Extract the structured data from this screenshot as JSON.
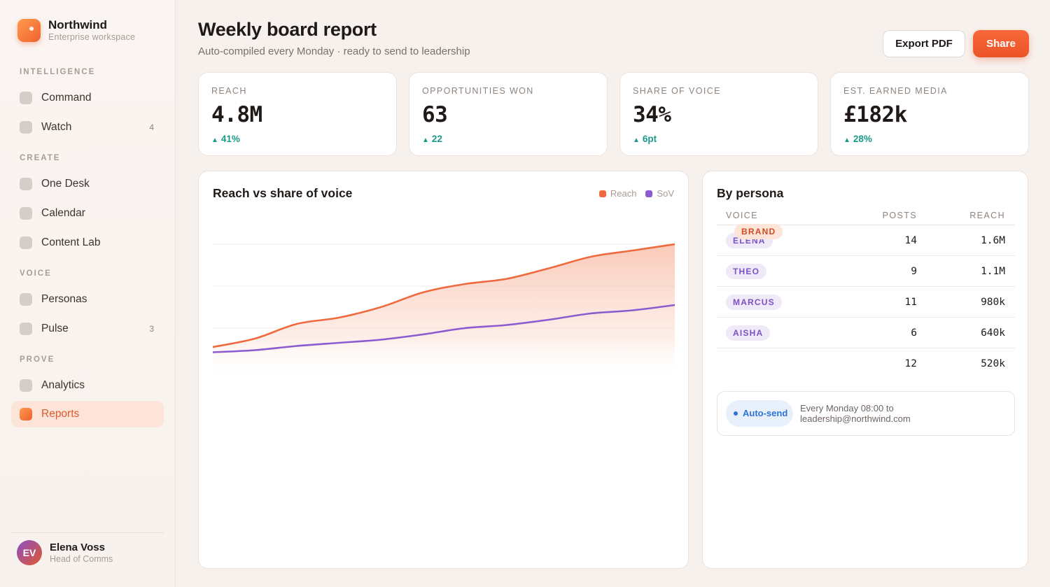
{
  "brand": {
    "name": "Northwind",
    "subtitle": "Enterprise workspace"
  },
  "nav": {
    "sections": [
      {
        "label": "INTELLIGENCE"
      },
      {
        "label": "CREATE"
      },
      {
        "label": "VOICE"
      },
      {
        "label": "PROVE"
      }
    ],
    "items": [
      {
        "label": "Command",
        "count": ""
      },
      {
        "label": "Watch",
        "count": "4"
      },
      {
        "label": "One Desk",
        "count": ""
      },
      {
        "label": "Calendar",
        "count": ""
      },
      {
        "label": "Content Lab",
        "count": ""
      },
      {
        "label": "Personas",
        "count": ""
      },
      {
        "label": "Pulse",
        "count": "3"
      },
      {
        "label": "Analytics",
        "count": ""
      },
      {
        "label": "Reports",
        "count": "",
        "active": true
      }
    ]
  },
  "user": {
    "initials": "EV",
    "name": "Elena Voss",
    "role": "Head of Comms"
  },
  "header": {
    "title": "Weekly board report",
    "subtitle": "Auto-compiled every Monday · ready to send to leadership",
    "export_label": "Export PDF",
    "share_label": "Share"
  },
  "kpis": [
    {
      "label": "REACH",
      "value": "4.8M",
      "delta": "41%"
    },
    {
      "label": "OPPORTUNITIES WON",
      "value": "63",
      "delta": "22"
    },
    {
      "label": "SHARE OF VOICE",
      "value": "34%",
      "delta": "6pt"
    },
    {
      "label": "EST. EARNED MEDIA",
      "value": "£182k",
      "delta": "28%"
    }
  ],
  "chart": {
    "title": "Reach vs share of voice",
    "legend": [
      {
        "name": "Reach",
        "color": "#ee6a3e"
      },
      {
        "name": "SoV",
        "color": "#8a5cd0"
      }
    ]
  },
  "chart_data": {
    "type": "area",
    "title": "Reach vs share of voice",
    "x": [
      0,
      1,
      2,
      3,
      4,
      5,
      6,
      7,
      8,
      9,
      10,
      11
    ],
    "series": [
      {
        "name": "Reach",
        "values": [
          0.1,
          0.18,
          0.32,
          0.38,
          0.48,
          0.62,
          0.7,
          0.75,
          0.85,
          0.96,
          1.02,
          1.08
        ]
      },
      {
        "name": "SoV",
        "values": [
          0.05,
          0.07,
          0.11,
          0.14,
          0.17,
          0.22,
          0.28,
          0.31,
          0.36,
          0.42,
          0.45,
          0.5
        ]
      }
    ],
    "ylim": [
      0,
      1.4
    ],
    "grid": true,
    "legend_position": "top-right"
  },
  "personas": {
    "title": "By persona",
    "headers": {
      "voice": "VOICE",
      "posts": "POSTS",
      "reach": "REACH"
    },
    "rows": [
      {
        "voice": "ELENA",
        "posts": "14",
        "reach": "1.6M",
        "kind": "voice"
      },
      {
        "voice": "THEO",
        "posts": "9",
        "reach": "1.1M",
        "kind": "voice"
      },
      {
        "voice": "MARCUS",
        "posts": "11",
        "reach": "980k",
        "kind": "voice"
      },
      {
        "voice": "AISHA",
        "posts": "6",
        "reach": "640k",
        "kind": "voice"
      },
      {
        "voice": "BRAND",
        "posts": "12",
        "reach": "520k",
        "kind": "brand"
      }
    ],
    "autosend": {
      "label": "Auto-send",
      "text": "Every Monday 08:00 to leadership@northwind.com"
    }
  }
}
